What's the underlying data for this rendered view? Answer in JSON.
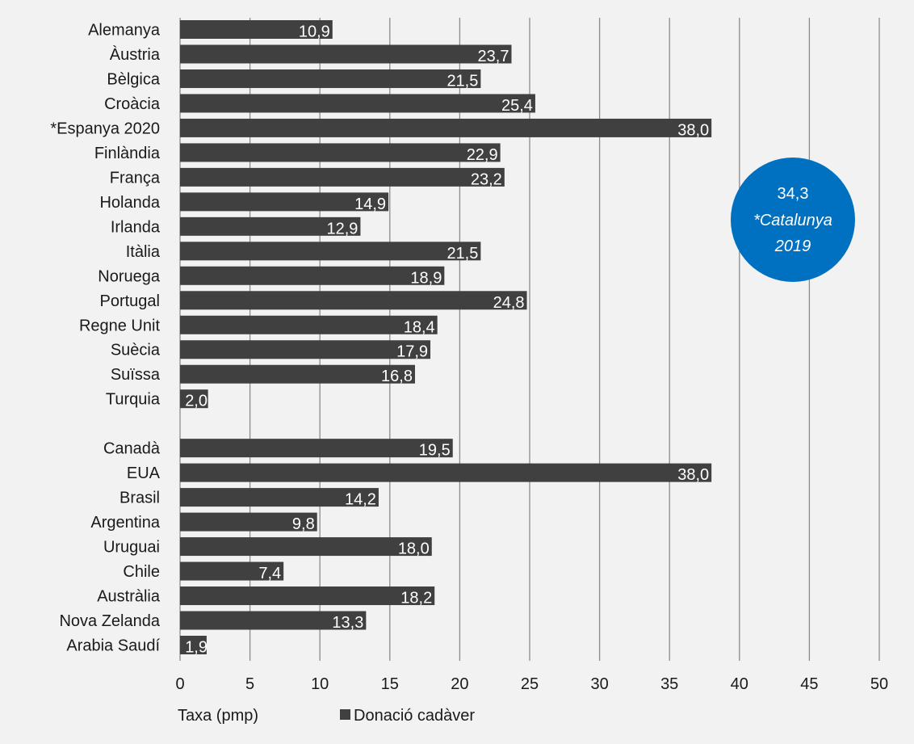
{
  "chart_data": {
    "type": "bar",
    "orientation": "horizontal",
    "categories": [
      "Alemanya",
      "Àustria",
      "Bèlgica",
      "Croàcia",
      "*Espanya 2020",
      "Finlàndia",
      "França",
      "Holanda",
      "Irlanda",
      "Itàlia",
      "Noruega",
      "Portugal",
      "Regne Unit",
      "Suècia",
      "Suïssa",
      "Turquia",
      "",
      "Canadà",
      "EUA",
      "Brasil",
      "Argentina",
      "Uruguai",
      "Chile",
      "Austràlia",
      "Nova Zelanda",
      "Arabia Saudí"
    ],
    "series": [
      {
        "name": "Donació cadàver",
        "values": [
          10.9,
          23.7,
          21.5,
          25.4,
          38.0,
          22.9,
          23.2,
          14.9,
          12.9,
          21.5,
          18.9,
          24.8,
          18.4,
          17.9,
          16.8,
          2.0,
          null,
          19.5,
          38.0,
          14.2,
          9.8,
          18.0,
          7.4,
          18.2,
          13.3,
          1.9
        ],
        "labels": [
          "10,9",
          "23,7",
          "21,5",
          "25,4",
          "38,0",
          "22,9",
          "23,2",
          "14,9",
          "12,9",
          "21,5",
          "18,9",
          "24,8",
          "18,4",
          "17,9",
          "16,8",
          "2,0",
          "",
          "19,5",
          "38,0",
          "14,2",
          "9,8",
          "18,0",
          "7,4",
          "18,2",
          "13,3",
          "1,9"
        ],
        "color": "#404040"
      }
    ],
    "xlim": [
      0,
      50
    ],
    "xticks": [
      0,
      5,
      10,
      15,
      20,
      25,
      30,
      35,
      40,
      45,
      50
    ],
    "xtick_labels": [
      "0",
      "5",
      "10",
      "15",
      "20",
      "25",
      "30",
      "35",
      "40",
      "45",
      "50"
    ],
    "grid": "vertical",
    "axis_label": "Taxa (pmp)",
    "legend": {
      "label": "Donació cadàver",
      "position": "bottom"
    },
    "annotation": {
      "value": "34,3",
      "line1": "*Catalunya",
      "line2": "2019",
      "color": "#0070c0"
    }
  },
  "colors": {
    "background": "#f2f2f2",
    "bar": "#404040",
    "grid": "#8c8c8c",
    "text": "#1a1a1a",
    "bar_label": "#ffffff",
    "annotation": "#0070c0"
  }
}
